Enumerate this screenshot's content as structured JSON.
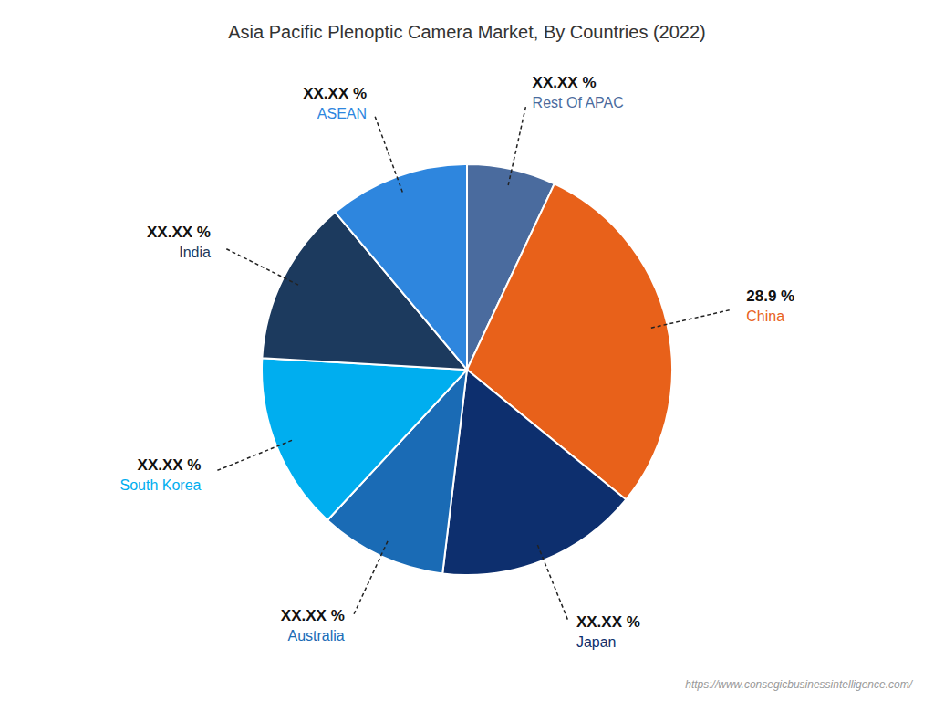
{
  "chart_data": {
    "type": "pie",
    "title": "Asia Pacific Plenoptic Camera Market, By Countries (2022)",
    "categories": [
      "Rest Of APAC",
      "China",
      "Japan",
      "Australia",
      "South Korea",
      "India",
      "ASEAN"
    ],
    "values": [
      7.0,
      28.9,
      16.0,
      10.0,
      14.0,
      13.0,
      11.1
    ],
    "value_labels": [
      "XX.XX %",
      "28.9 %",
      "XX.XX %",
      "XX.XX %",
      "XX.XX %",
      "XX.XX %",
      "XX.XX %"
    ],
    "colors": [
      "#4A6B9E",
      "#E8611A",
      "#0D2F6E",
      "#1A6BB5",
      "#00AEEF",
      "#1C3A5E",
      "#2E86DE"
    ],
    "data_labels": true,
    "annotations": [
      "https://www.consegicbusinessintelligence.com/"
    ]
  }
}
